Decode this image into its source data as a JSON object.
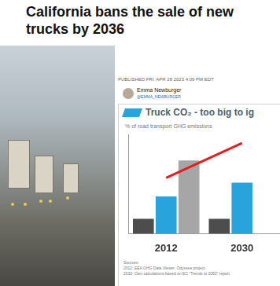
{
  "header": {
    "headline": [
      "California bans the sale of new",
      "trucks by 2036"
    ],
    "published": "PUBLISHED FRI, APR 28 2023 4:09 PM EDT",
    "author": "Emma Newburger",
    "handle": "@EMMA_NEWBURGER"
  },
  "chart_data": {
    "type": "bar",
    "title": "Truck CO₂ - too big to ig",
    "y_label": "% of road transport GHG emissions",
    "categories": [
      "2012",
      "2030"
    ],
    "series": [
      {
        "color": "#4d4d4d",
        "values": [
          12,
          12
        ]
      },
      {
        "color": "#29a3dc",
        "values": [
          30,
          41
        ]
      },
      {
        "color": "#a6a6a6",
        "values": [
          59,
          null
        ]
      },
      {
        "type": "line",
        "color": "#e02020",
        "values": [
          45,
          73
        ]
      }
    ],
    "ylim": [
      0,
      80
    ],
    "grid": false,
    "tick_labels": "x"
  },
  "sources": [
    "Sources:",
    "2012: EEA GHG Data Viewer, Odyssee project",
    "2030: Own calculations based on EC \"Trends to 2050\" report."
  ]
}
